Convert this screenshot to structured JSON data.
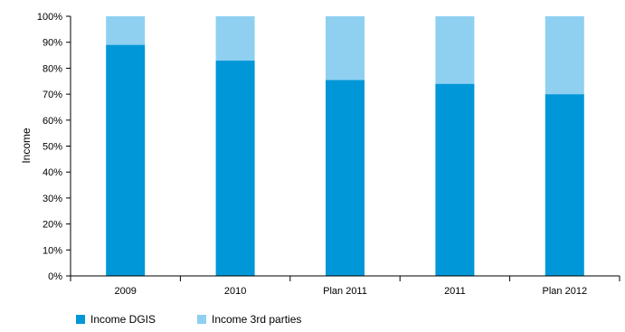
{
  "chart_data": {
    "type": "bar",
    "stacked": true,
    "categories": [
      "2009",
      "2010",
      "Plan 2011",
      "2011",
      "Plan 2012"
    ],
    "series": [
      {
        "name": "Income DGIS",
        "values": [
          89,
          83,
          75.5,
          74,
          70
        ],
        "color": "#0097d8"
      },
      {
        "name": "Income 3rd parties",
        "values": [
          11,
          17,
          24.5,
          26,
          30
        ],
        "color": "#8fd0f1"
      }
    ],
    "ylabel": "Income",
    "xlabel": "",
    "ylim": [
      0,
      100
    ],
    "yticks": [
      "0%",
      "10%",
      "20%",
      "30%",
      "40%",
      "50%",
      "60%",
      "70%",
      "80%",
      "90%",
      "100%"
    ],
    "grid": false,
    "legend_position": "bottom-left"
  }
}
